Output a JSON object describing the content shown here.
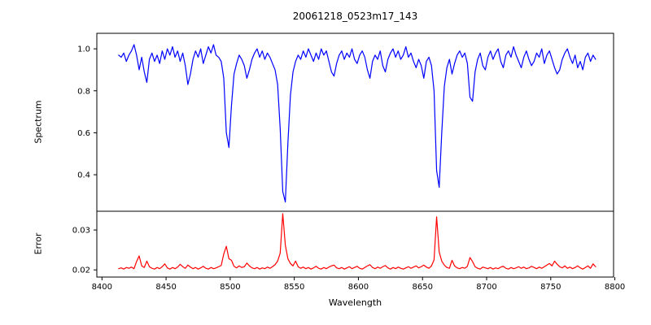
{
  "figure": {
    "title": "20061218_0523m17_143",
    "background": "#ffffff",
    "spine_color": "#000000",
    "text_color": "#000000"
  },
  "chart_data": {
    "type": "line",
    "title": "20061218_0523m17_143",
    "xlabel": "Wavelength",
    "grid": false,
    "legend": "none",
    "x_lim": [
      8396,
      8799
    ],
    "x_ticks": [
      8400,
      8450,
      8500,
      8550,
      8600,
      8650,
      8700,
      8750,
      8800
    ],
    "x_tick_labels": [
      "8400",
      "8450",
      "8500",
      "8550",
      "8600",
      "8650",
      "8700",
      "8750",
      "8800"
    ],
    "panels": [
      {
        "name": "spectrum",
        "ylabel": "Spectrum",
        "line_color": "#0000ff",
        "y_lim": [
          0.226,
          1.074
        ],
        "y_ticks": [
          1.0,
          0.8,
          0.6,
          0.4
        ],
        "y_tick_labels": [
          "1.0",
          "0.8",
          "0.6",
          "0.4"
        ],
        "x_start": 8413,
        "x_step": 2,
        "values": [
          0.97,
          0.96,
          0.98,
          0.94,
          0.97,
          0.99,
          1.02,
          0.97,
          0.9,
          0.96,
          0.89,
          0.84,
          0.95,
          0.98,
          0.94,
          0.97,
          0.93,
          0.99,
          0.95,
          1.0,
          0.97,
          1.01,
          0.96,
          0.99,
          0.94,
          0.98,
          0.92,
          0.83,
          0.88,
          0.95,
          0.99,
          0.96,
          1.0,
          0.93,
          0.97,
          1.01,
          0.98,
          1.02,
          0.97,
          0.96,
          0.94,
          0.86,
          0.6,
          0.53,
          0.73,
          0.88,
          0.93,
          0.97,
          0.95,
          0.92,
          0.86,
          0.9,
          0.95,
          0.98,
          1.0,
          0.96,
          0.99,
          0.95,
          0.98,
          0.96,
          0.93,
          0.9,
          0.83,
          0.62,
          0.32,
          0.27,
          0.55,
          0.78,
          0.89,
          0.94,
          0.97,
          0.95,
          0.99,
          0.96,
          1.0,
          0.97,
          0.94,
          0.98,
          0.95,
          1.0,
          0.97,
          0.99,
          0.94,
          0.89,
          0.87,
          0.93,
          0.97,
          0.99,
          0.95,
          0.98,
          0.96,
          1.0,
          0.95,
          0.93,
          0.97,
          0.99,
          0.96,
          0.9,
          0.86,
          0.94,
          0.97,
          0.95,
          0.99,
          0.92,
          0.89,
          0.95,
          0.98,
          1.0,
          0.96,
          0.99,
          0.95,
          0.97,
          1.01,
          0.96,
          0.98,
          0.94,
          0.91,
          0.95,
          0.92,
          0.86,
          0.94,
          0.96,
          0.92,
          0.8,
          0.42,
          0.34,
          0.6,
          0.82,
          0.91,
          0.95,
          0.88,
          0.93,
          0.97,
          0.99,
          0.96,
          0.98,
          0.93,
          0.77,
          0.75,
          0.89,
          0.95,
          0.98,
          0.92,
          0.9,
          0.96,
          0.99,
          0.95,
          0.98,
          1.0,
          0.94,
          0.91,
          0.97,
          0.99,
          0.96,
          1.01,
          0.97,
          0.94,
          0.91,
          0.96,
          0.99,
          0.95,
          0.92,
          0.94,
          0.98,
          0.96,
          1.0,
          0.93,
          0.97,
          0.99,
          0.95,
          0.91,
          0.88,
          0.9,
          0.95,
          0.98,
          1.0,
          0.96,
          0.93,
          0.97,
          0.91,
          0.94,
          0.9,
          0.96,
          0.98,
          0.94,
          0.97,
          0.95
        ]
      },
      {
        "name": "error",
        "ylabel": "Error",
        "line_color": "#ff0000",
        "y_lim": [
          0.0182,
          0.0347
        ],
        "y_ticks": [
          0.03,
          0.02
        ],
        "y_tick_labels": [
          "0.03",
          "0.02"
        ],
        "x_start": 8413,
        "x_step": 2,
        "values": [
          0.0203,
          0.0205,
          0.0202,
          0.0206,
          0.0204,
          0.0207,
          0.0203,
          0.0221,
          0.0235,
          0.021,
          0.0206,
          0.0222,
          0.0208,
          0.0204,
          0.0202,
          0.0206,
          0.0203,
          0.0208,
          0.0215,
          0.0205,
          0.0202,
          0.0206,
          0.0203,
          0.0207,
          0.0214,
          0.0208,
          0.0204,
          0.0212,
          0.0207,
          0.0203,
          0.0206,
          0.0202,
          0.0205,
          0.0209,
          0.0204,
          0.0202,
          0.0206,
          0.0203,
          0.0205,
          0.0208,
          0.0211,
          0.024,
          0.0259,
          0.0228,
          0.0224,
          0.0209,
          0.0205,
          0.021,
          0.0206,
          0.0208,
          0.0217,
          0.021,
          0.0205,
          0.0203,
          0.0206,
          0.0202,
          0.0205,
          0.0203,
          0.0207,
          0.0204,
          0.0208,
          0.0213,
          0.0222,
          0.0242,
          0.0341,
          0.0262,
          0.0228,
          0.0216,
          0.021,
          0.0222,
          0.0208,
          0.0204,
          0.0207,
          0.0203,
          0.0206,
          0.0202,
          0.0205,
          0.0209,
          0.0204,
          0.0202,
          0.0206,
          0.0203,
          0.0207,
          0.021,
          0.0212,
          0.0205,
          0.0203,
          0.0206,
          0.0202,
          0.0205,
          0.0208,
          0.0203,
          0.0206,
          0.0209,
          0.0204,
          0.0202,
          0.0206,
          0.021,
          0.0213,
          0.0206,
          0.0203,
          0.0207,
          0.0204,
          0.0208,
          0.0211,
          0.0205,
          0.0202,
          0.0206,
          0.0203,
          0.0207,
          0.0204,
          0.0202,
          0.0205,
          0.0208,
          0.0204,
          0.0207,
          0.021,
          0.0205,
          0.0208,
          0.0212,
          0.0207,
          0.0204,
          0.021,
          0.0225,
          0.0333,
          0.0245,
          0.0222,
          0.0212,
          0.0206,
          0.0204,
          0.0224,
          0.021,
          0.0205,
          0.0203,
          0.0206,
          0.0204,
          0.0209,
          0.0231,
          0.0221,
          0.0208,
          0.0204,
          0.0202,
          0.0207,
          0.0205,
          0.0203,
          0.0206,
          0.0202,
          0.0205,
          0.0203,
          0.0207,
          0.0209,
          0.0204,
          0.0202,
          0.0206,
          0.0203,
          0.0205,
          0.0208,
          0.0204,
          0.0207,
          0.0203,
          0.0205,
          0.0209,
          0.0206,
          0.0203,
          0.0207,
          0.0204,
          0.0208,
          0.0212,
          0.0216,
          0.021,
          0.0222,
          0.0214,
          0.0208,
          0.0205,
          0.021,
          0.0204,
          0.0207,
          0.0203,
          0.0206,
          0.021,
          0.0205,
          0.0202,
          0.0206,
          0.021,
          0.0204,
          0.0215,
          0.0208
        ]
      }
    ]
  }
}
